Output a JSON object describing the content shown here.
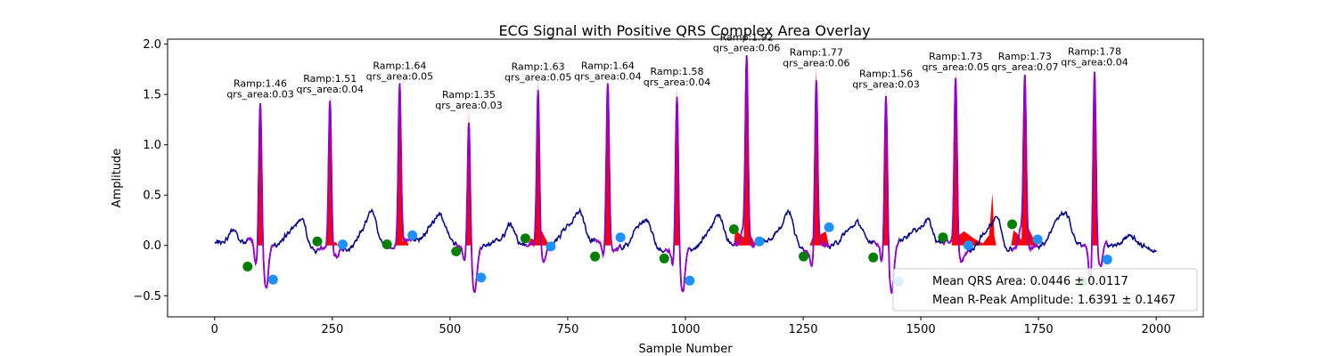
{
  "chart_data": {
    "type": "line",
    "title": "ECG Signal with Positive QRS Complex Area Overlay",
    "xlabel": "Sample Number",
    "ylabel": "Amplitude",
    "xlim": [
      -100,
      2100
    ],
    "ylim": [
      -0.71,
      2.05
    ],
    "xticks": [
      0,
      250,
      500,
      750,
      1000,
      1250,
      1500,
      1750,
      2000
    ],
    "yticks": [
      -0.5,
      0.0,
      0.5,
      1.0,
      1.5,
      2.0
    ],
    "xtick_labels": [
      "0",
      "250",
      "500",
      "750",
      "1000",
      "1250",
      "1500",
      "1750",
      "2000"
    ],
    "ytick_labels": [
      "−0.5",
      "0.0",
      "0.5",
      "1.0",
      "1.5",
      "2.0"
    ],
    "grid": false,
    "legend_position": "lower-right",
    "legend": [
      "Mean QRS Area: 0.0446 ± 0.0117",
      "Mean R-Peak Amplitude: 1.6391 ± 0.1467"
    ],
    "colors": {
      "ecg": "#00008b",
      "qrs_segment": "#9400d3",
      "qrs_area_fill": "#ff0000",
      "q_onset_marker": "#008000",
      "s_offset_marker": "#1e90ff"
    },
    "beats": [
      {
        "r_x": 97,
        "r_amp": 1.46,
        "area_label": "qrs_area:0.03",
        "amp_label": "Ramp:1.46",
        "onset_x": 70,
        "onset_y": -0.21,
        "offset_x": 124,
        "offset_y": -0.34,
        "fill": [
          [
            92,
            0
          ],
          [
            97,
            1.46
          ],
          [
            101,
            0
          ]
        ]
      },
      {
        "r_x": 245,
        "r_amp": 1.51,
        "area_label": "qrs_area:0.04",
        "amp_label": "Ramp:1.51",
        "onset_x": 218,
        "onset_y": 0.04,
        "offset_x": 272,
        "offset_y": 0.01,
        "fill": [
          [
            238,
            0.03
          ],
          [
            245,
            1.51
          ],
          [
            250,
            0.03
          ],
          [
            258,
            0.03
          ],
          [
            262,
            0
          ]
        ]
      },
      {
        "r_x": 393,
        "r_amp": 1.64,
        "area_label": "qrs_area:0.05",
        "amp_label": "Ramp:1.64",
        "onset_x": 366,
        "onset_y": 0.01,
        "offset_x": 420,
        "offset_y": 0.1,
        "fill": [
          [
            385,
            0.02
          ],
          [
            393,
            1.64
          ],
          [
            399,
            0.04
          ],
          [
            408,
            0.06
          ],
          [
            412,
            0
          ]
        ]
      },
      {
        "r_x": 540,
        "r_amp": 1.35,
        "area_label": "qrs_area:0.03",
        "amp_label": "Ramp:1.35",
        "onset_x": 513,
        "onset_y": -0.06,
        "offset_x": 566,
        "offset_y": -0.32,
        "fill": [
          [
            535,
            0
          ],
          [
            540,
            1.35
          ],
          [
            544,
            0
          ]
        ]
      },
      {
        "r_x": 687,
        "r_amp": 1.63,
        "area_label": "qrs_area:0.05",
        "amp_label": "Ramp:1.63",
        "onset_x": 660,
        "onset_y": 0.07,
        "offset_x": 714,
        "offset_y": -0.01,
        "fill": [
          [
            665,
            0
          ],
          [
            672,
            0.07
          ],
          [
            680,
            0.05
          ],
          [
            687,
            1.63
          ],
          [
            694,
            0.15
          ],
          [
            705,
            0.05
          ],
          [
            710,
            0
          ]
        ]
      },
      {
        "r_x": 835,
        "r_amp": 1.64,
        "area_label": "qrs_area:0.04",
        "amp_label": "Ramp:1.64",
        "onset_x": 808,
        "onset_y": -0.11,
        "offset_x": 862,
        "offset_y": 0.08,
        "fill": [
          [
            829,
            0
          ],
          [
            835,
            1.64
          ],
          [
            841,
            0
          ]
        ]
      },
      {
        "r_x": 982,
        "r_amp": 1.58,
        "area_label": "qrs_area:0.04",
        "amp_label": "Ramp:1.58",
        "onset_x": 955,
        "onset_y": -0.13,
        "offset_x": 1009,
        "offset_y": -0.35,
        "fill": [
          [
            977,
            0
          ],
          [
            982,
            1.58
          ],
          [
            987,
            0
          ]
        ]
      },
      {
        "r_x": 1130,
        "r_amp": 1.92,
        "area_label": "qrs_area:0.06",
        "amp_label": "Ramp:1.92",
        "onset_x": 1103,
        "onset_y": 0.16,
        "offset_x": 1157,
        "offset_y": 0.04,
        "fill": [
          [
            1103,
            0
          ],
          [
            1106,
            0.16
          ],
          [
            1118,
            0.1
          ],
          [
            1124,
            0.08
          ],
          [
            1130,
            1.92
          ],
          [
            1137,
            0.12
          ],
          [
            1145,
            0.04
          ],
          [
            1150,
            0
          ]
        ]
      },
      {
        "r_x": 1278,
        "r_amp": 1.77,
        "area_label": "qrs_area:0.06",
        "amp_label": "Ramp:1.77",
        "onset_x": 1251,
        "onset_y": -0.11,
        "offset_x": 1305,
        "offset_y": 0.18,
        "fill": [
          [
            1264,
            0
          ],
          [
            1270,
            0.08
          ],
          [
            1278,
            1.77
          ],
          [
            1284,
            0.1
          ],
          [
            1298,
            0.14
          ],
          [
            1305,
            0
          ]
        ]
      },
      {
        "r_x": 1426,
        "r_amp": 1.56,
        "area_label": "qrs_area:0.03",
        "amp_label": "Ramp:1.56",
        "onset_x": 1399,
        "onset_y": -0.12,
        "offset_x": 1453,
        "offset_y": -0.36,
        "fill": [
          [
            1420,
            0
          ],
          [
            1426,
            1.56
          ],
          [
            1431,
            0
          ]
        ]
      },
      {
        "r_x": 1574,
        "r_amp": 1.73,
        "area_label": "qrs_area:0.05",
        "amp_label": "Ramp:1.73",
        "onset_x": 1547,
        "onset_y": 0.08,
        "offset_x": 1601,
        "offset_y": 0.0,
        "fill": [
          [
            1566,
            0
          ],
          [
            1574,
            1.73
          ],
          [
            1580,
            0.1
          ],
          [
            1592,
            0.14
          ],
          [
            1612,
            0.07
          ],
          [
            1632,
            0.02
          ],
          [
            1645,
            0.1
          ],
          [
            1652,
            0.52
          ],
          [
            1656,
            0.1
          ],
          [
            1660,
            0
          ]
        ]
      },
      {
        "r_x": 1721,
        "r_amp": 1.73,
        "area_label": "qrs_area:0.07",
        "amp_label": "Ramp:1.73",
        "onset_x": 1694,
        "onset_y": 0.21,
        "offset_x": 1748,
        "offset_y": 0.06,
        "fill": [
          [
            1692,
            0
          ],
          [
            1697,
            0.15
          ],
          [
            1706,
            0.11
          ],
          [
            1714,
            0.05
          ],
          [
            1721,
            1.73
          ],
          [
            1728,
            0.18
          ],
          [
            1738,
            0.08
          ],
          [
            1745,
            0
          ]
        ]
      },
      {
        "r_x": 1869,
        "r_amp": 1.78,
        "area_label": "qrs_area:0.04",
        "amp_label": "Ramp:1.78",
        "onset_x": 1842,
        "onset_y": -0.36,
        "offset_x": 1896,
        "offset_y": -0.14,
        "fill": [
          [
            1863,
            0
          ],
          [
            1869,
            1.78
          ],
          [
            1875,
            0
          ]
        ]
      }
    ]
  }
}
